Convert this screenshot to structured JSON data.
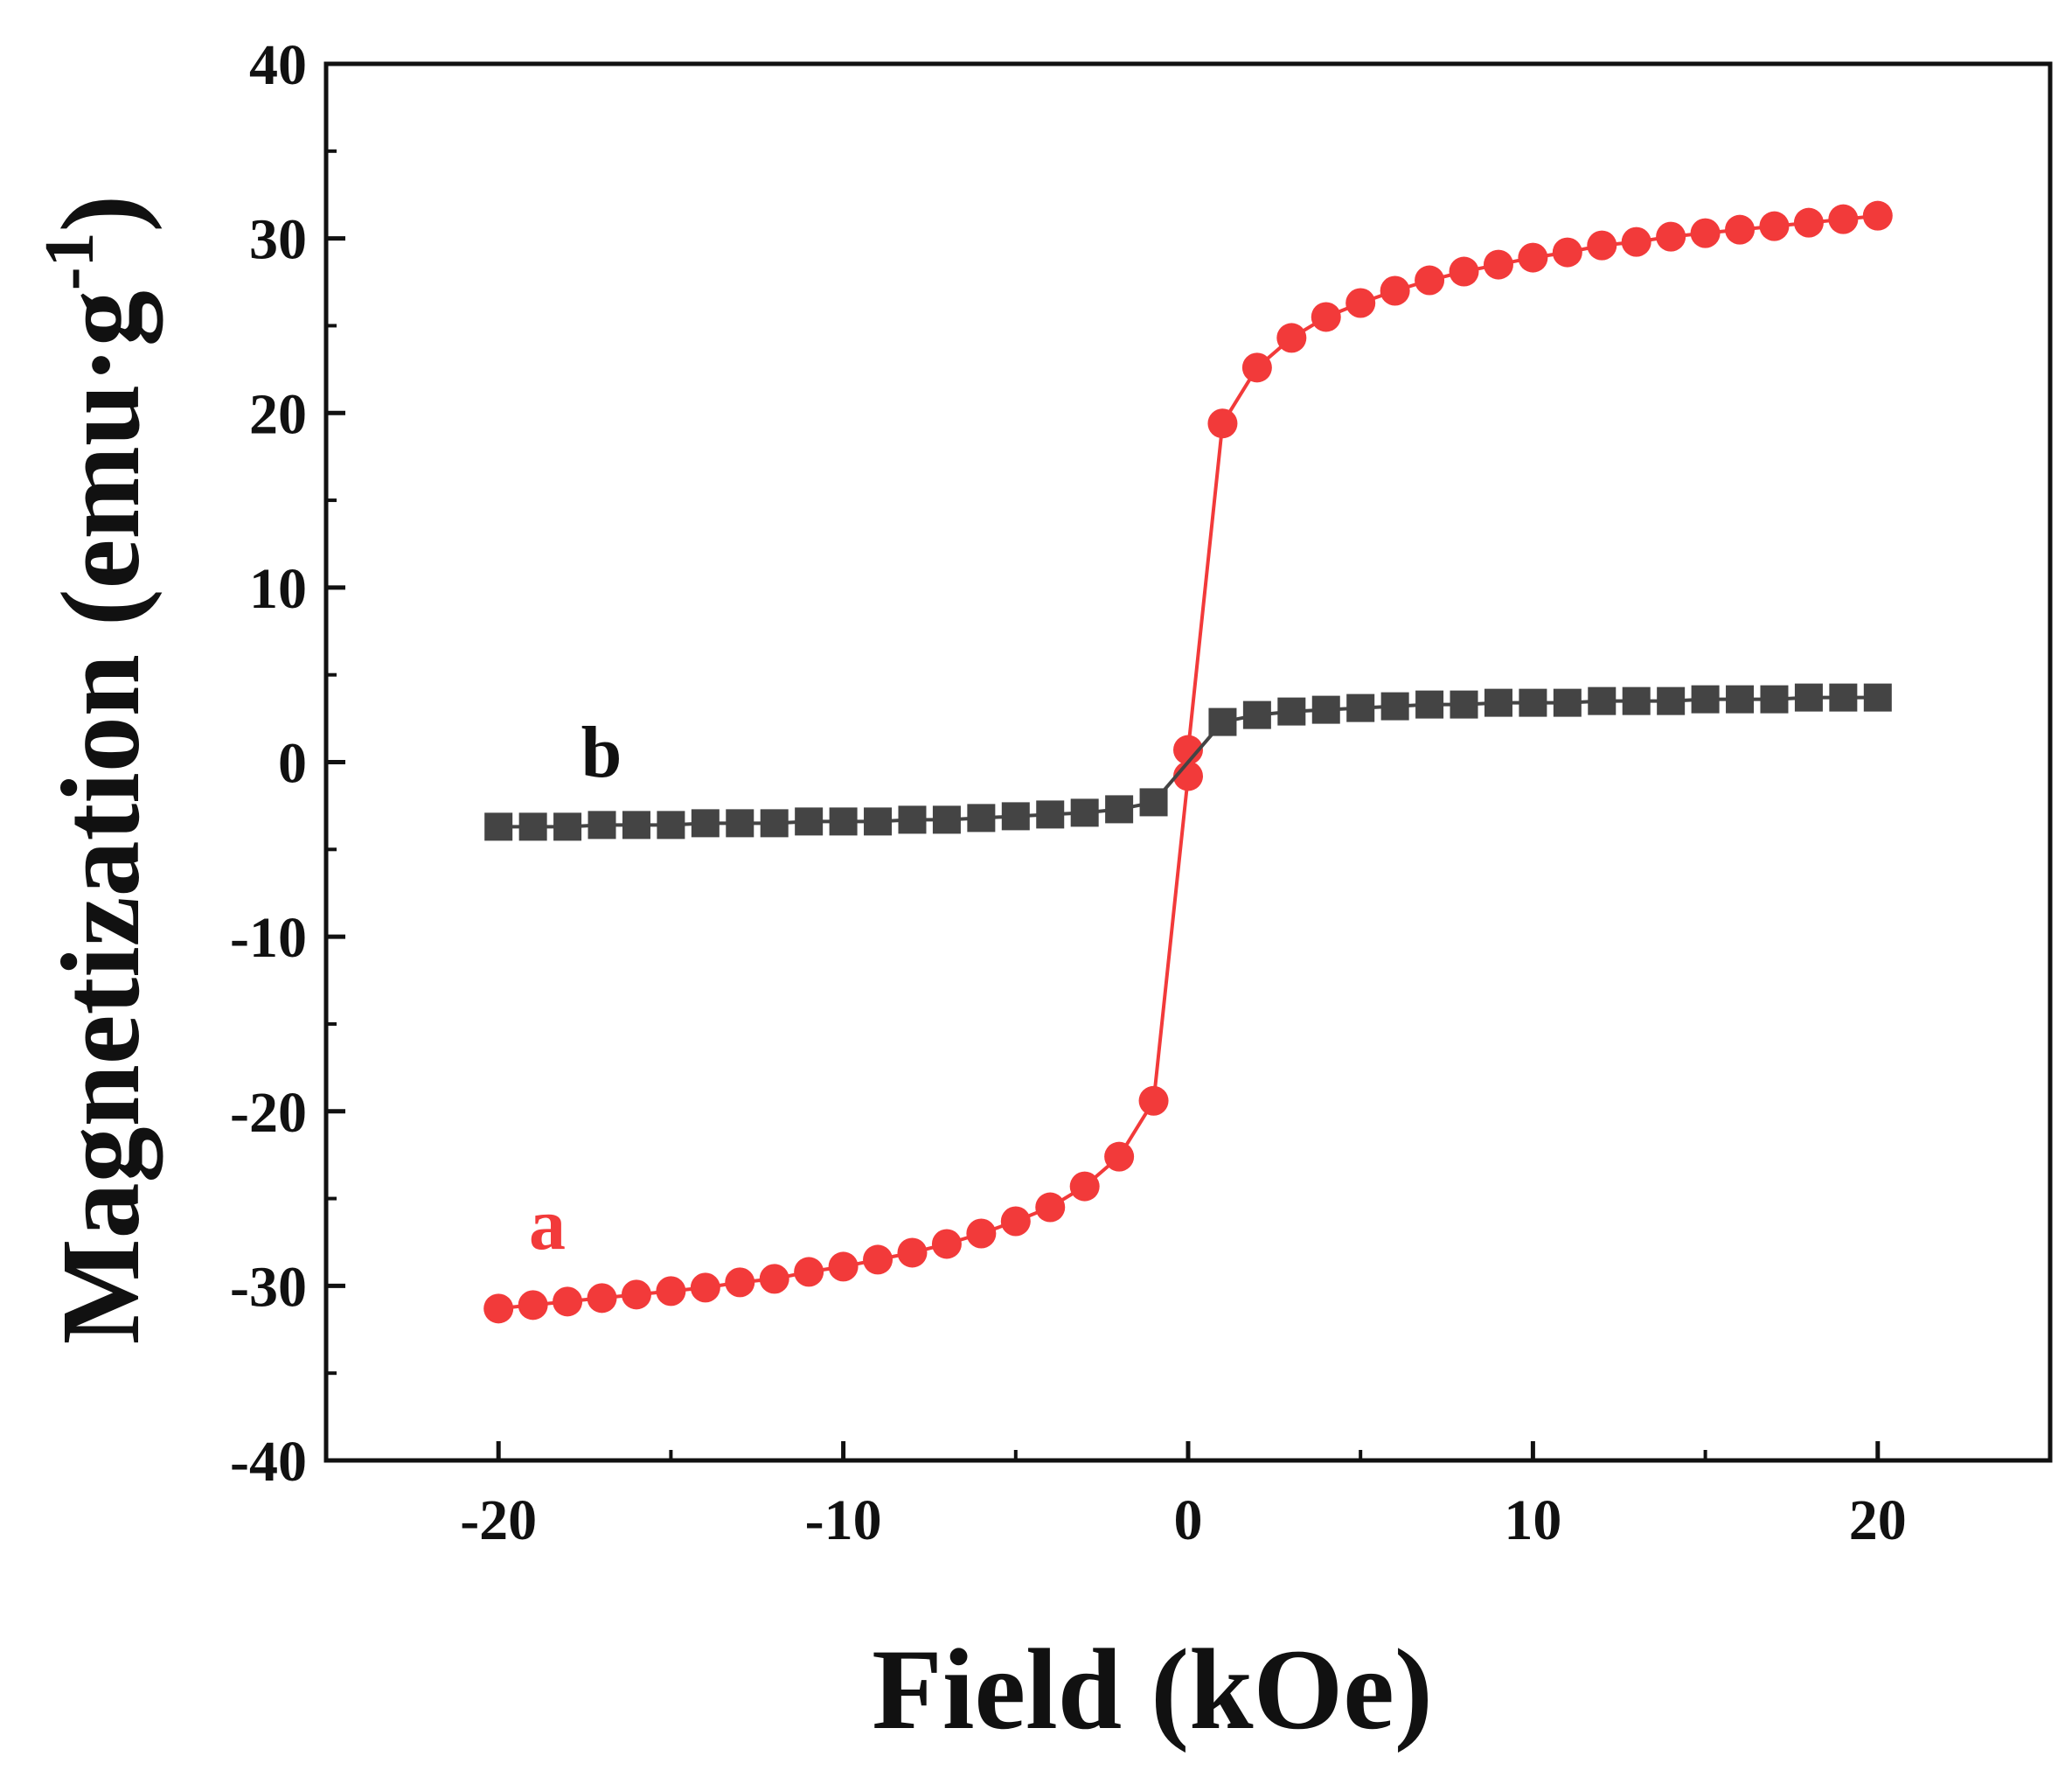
{
  "chart_data": {
    "type": "line",
    "xlabel": "Field (kOe)",
    "ylabel": "Magnetization (emu·g",
    "ylabel_superscript": "-1",
    "ylabel_close": ")",
    "xlim": [
      -25,
      25
    ],
    "ylim": [
      -40,
      40
    ],
    "x_ticks": [
      -20,
      -10,
      0,
      10,
      20
    ],
    "x_tick_labels": [
      "-20",
      "-10",
      "0",
      "10",
      "20"
    ],
    "y_ticks": [
      -40,
      -30,
      -20,
      -10,
      0,
      10,
      20,
      30,
      40
    ],
    "y_tick_labels": [
      "-40",
      "-30",
      "-20",
      "-10",
      "0",
      "10",
      "20",
      "30",
      "40"
    ],
    "grid": false,
    "series": [
      {
        "name": "a",
        "color": "#f23a3a",
        "marker": "circle",
        "x": [
          -20,
          -19,
          -18,
          -17,
          -16,
          -15,
          -14,
          -13,
          -12,
          -11,
          -10,
          -9,
          -8,
          -7,
          -6,
          -5,
          -4,
          -3,
          -2,
          -1,
          0,
          0,
          1,
          2,
          3,
          4,
          5,
          6,
          7,
          8,
          9,
          10,
          11,
          12,
          13,
          14,
          15,
          16,
          17,
          18,
          19,
          20
        ],
        "y": [
          -31.3,
          -31.1,
          -30.9,
          -30.7,
          -30.5,
          -30.3,
          -30.1,
          -29.8,
          -29.6,
          -29.2,
          -28.9,
          -28.5,
          -28.1,
          -27.6,
          -27.0,
          -26.3,
          -25.5,
          -24.3,
          -22.6,
          -19.4,
          -0.8,
          0.7,
          19.4,
          22.6,
          24.3,
          25.5,
          26.3,
          27.0,
          27.6,
          28.1,
          28.5,
          28.9,
          29.2,
          29.6,
          29.8,
          30.1,
          30.3,
          30.5,
          30.7,
          30.9,
          31.1,
          31.3
        ]
      },
      {
        "name": "b",
        "color": "#444444",
        "marker": "square",
        "x": [
          -20,
          -19,
          -18,
          -17,
          -16,
          -15,
          -14,
          -13,
          -12,
          -11,
          -10,
          -9,
          -8,
          -7,
          -6,
          -5,
          -4,
          -3,
          -2,
          -1,
          1,
          2,
          3,
          4,
          5,
          6,
          7,
          8,
          9,
          10,
          11,
          12,
          13,
          14,
          15,
          16,
          17,
          18,
          19,
          20
        ],
        "y": [
          -3.7,
          -3.7,
          -3.7,
          -3.6,
          -3.6,
          -3.6,
          -3.5,
          -3.5,
          -3.5,
          -3.4,
          -3.4,
          -3.4,
          -3.3,
          -3.3,
          -3.2,
          -3.1,
          -3.0,
          -2.9,
          -2.7,
          -2.3,
          2.3,
          2.7,
          2.9,
          3.0,
          3.1,
          3.2,
          3.3,
          3.3,
          3.4,
          3.4,
          3.4,
          3.5,
          3.5,
          3.5,
          3.6,
          3.6,
          3.6,
          3.7,
          3.7,
          3.7
        ]
      }
    ]
  }
}
